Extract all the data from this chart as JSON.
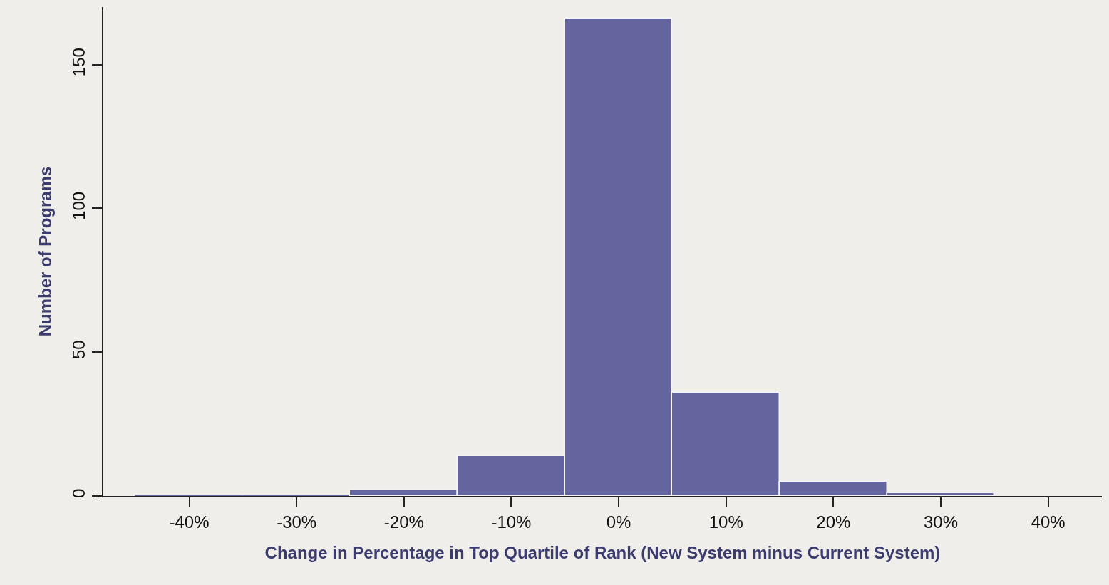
{
  "chart_data": {
    "type": "histogram",
    "xlabel": "Change in Percentage in Top Quartile of Rank (New System minus Current System)",
    "ylabel": "Number of Programs",
    "bins": [
      -45,
      -35,
      -25,
      -15,
      -5,
      5,
      15,
      25,
      35
    ],
    "values": [
      0,
      0,
      2,
      14,
      166,
      36,
      5,
      1
    ],
    "color": "#64649e",
    "xlim": [
      -48,
      45
    ],
    "ylim": [
      0,
      170
    ],
    "xticks": [
      {
        "value": -40,
        "label": "-40%"
      },
      {
        "value": -30,
        "label": "-30%"
      },
      {
        "value": -20,
        "label": "-20%"
      },
      {
        "value": -10,
        "label": "-10%"
      },
      {
        "value": 0,
        "label": "0%"
      },
      {
        "value": 10,
        "label": "10%"
      },
      {
        "value": 20,
        "label": "20%"
      },
      {
        "value": 30,
        "label": "30%"
      },
      {
        "value": 40,
        "label": "40%"
      }
    ],
    "yticks": [
      0,
      50,
      100,
      150
    ]
  }
}
